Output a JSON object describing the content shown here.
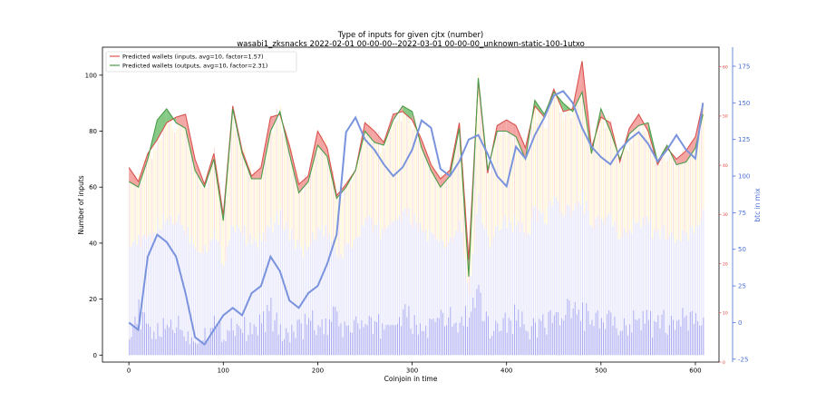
{
  "chart_data": {
    "type": "line",
    "title": "Type of inputs for given cjtx (number)",
    "subtitle": "wasabi1_zksnacks 2022-02-01 00-00-00--2022-03-01 00-00-00_unknown-static-100-1utxo",
    "xlabel": "Coinjoin in time",
    "ylabel": "Number of inputs",
    "y2label": "btc in mix",
    "xlim": [
      -28,
      625
    ],
    "ylim": [
      -2.5,
      110
    ],
    "y3lim": [
      0,
      64
    ],
    "y2lim": [
      -27,
      188
    ],
    "xticks": [
      0,
      100,
      200,
      300,
      400,
      500,
      600
    ],
    "yticks": [
      0,
      20,
      40,
      60,
      80,
      100
    ],
    "y3ticks": [
      0,
      10,
      20,
      30,
      40,
      50,
      60
    ],
    "y2ticks": [
      -25,
      0,
      25,
      50,
      75,
      100,
      125,
      150,
      175
    ],
    "grid": false,
    "legend_position": "top-left",
    "colors": {
      "inputs_line": "#d9534f",
      "outputs_line": "#4a9c4a",
      "fill_inputs_higher": "#f08a8a",
      "fill_outputs_higher": "#5fb85f",
      "btc_line": "#7a93dd",
      "bars_base": "#a9a9f2",
      "bars_mid": "#e3e3fb",
      "bars_top": "#fff3cc",
      "bars_pink": "#fbdcdc",
      "right_axis_red": "#e0413d",
      "right_axis_blue": "#4a6fd6"
    },
    "series": [
      {
        "name": "Predicted wallets (inputs, avg=10, factor=1.57)",
        "x": [
          0,
          10,
          20,
          30,
          40,
          50,
          60,
          70,
          80,
          90,
          100,
          110,
          120,
          130,
          140,
          150,
          160,
          170,
          180,
          190,
          200,
          210,
          220,
          230,
          240,
          250,
          260,
          270,
          280,
          290,
          300,
          310,
          320,
          330,
          340,
          350,
          360,
          370,
          380,
          390,
          400,
          410,
          420,
          430,
          440,
          450,
          460,
          470,
          480,
          490,
          500,
          510,
          520,
          530,
          540,
          550,
          560,
          570,
          580,
          590,
          600,
          608
        ],
        "values": [
          67,
          62,
          72,
          77,
          83,
          85,
          86,
          70,
          61,
          72,
          50,
          89,
          73,
          64,
          67,
          85,
          86,
          75,
          61,
          64,
          80,
          74,
          57,
          61,
          66,
          83,
          80,
          76,
          86,
          87,
          84,
          77,
          68,
          63,
          66,
          83,
          34,
          98,
          65,
          82,
          84,
          82,
          74,
          89,
          85,
          95,
          87,
          88,
          105,
          74,
          85,
          83,
          69,
          81,
          86,
          80,
          68,
          74,
          70,
          73,
          78,
          90
        ]
      },
      {
        "name": "Predicted wallets (outputs, avg=10, factor=2.31)",
        "x": [
          0,
          10,
          20,
          30,
          40,
          50,
          60,
          70,
          80,
          90,
          100,
          110,
          120,
          130,
          140,
          150,
          160,
          170,
          180,
          190,
          200,
          210,
          220,
          230,
          240,
          250,
          260,
          270,
          280,
          290,
          300,
          310,
          320,
          330,
          340,
          350,
          360,
          370,
          380,
          390,
          400,
          410,
          420,
          430,
          440,
          450,
          460,
          470,
          480,
          490,
          500,
          510,
          520,
          530,
          540,
          550,
          560,
          570,
          580,
          590,
          600,
          608
        ],
        "values": [
          62,
          60,
          70,
          84,
          88,
          83,
          81,
          66,
          60,
          70,
          48,
          88,
          72,
          63,
          63,
          80,
          87,
          72,
          58,
          62,
          75,
          71,
          56,
          60,
          66,
          80,
          76,
          75,
          84,
          89,
          87,
          74,
          66,
          60,
          64,
          81,
          28,
          99,
          66,
          80,
          80,
          78,
          70,
          91,
          86,
          94,
          90,
          87,
          94,
          72,
          88,
          80,
          70,
          79,
          82,
          83,
          69,
          75,
          68,
          69,
          74,
          86
        ]
      },
      {
        "name": "btc in mix",
        "axis": "right",
        "x": [
          0,
          10,
          20,
          30,
          40,
          50,
          60,
          70,
          80,
          90,
          100,
          110,
          120,
          130,
          140,
          150,
          160,
          170,
          180,
          190,
          200,
          210,
          220,
          230,
          240,
          250,
          260,
          270,
          280,
          290,
          300,
          310,
          320,
          330,
          340,
          350,
          360,
          370,
          380,
          390,
          400,
          410,
          420,
          430,
          440,
          450,
          460,
          470,
          480,
          490,
          500,
          510,
          520,
          530,
          540,
          550,
          560,
          570,
          580,
          590,
          600,
          608
        ],
        "values": [
          0,
          -5,
          45,
          60,
          55,
          45,
          20,
          -10,
          -15,
          -5,
          5,
          10,
          5,
          20,
          25,
          45,
          35,
          15,
          10,
          20,
          25,
          40,
          60,
          130,
          140,
          125,
          118,
          108,
          100,
          106,
          118,
          138,
          133,
          105,
          100,
          110,
          125,
          128,
          115,
          100,
          93,
          120,
          112,
          128,
          140,
          155,
          158,
          150,
          133,
          120,
          113,
          108,
          118,
          125,
          130,
          122,
          110,
          118,
          128,
          118,
          112,
          150
        ]
      }
    ],
    "bars": {
      "note": "stacked per-coinjoin input-type bars (approximate band heights in input units)",
      "x": [
        0,
        10,
        20,
        30,
        40,
        50,
        60,
        70,
        80,
        90,
        100,
        110,
        120,
        130,
        140,
        150,
        160,
        170,
        180,
        190,
        200,
        210,
        220,
        230,
        240,
        250,
        260,
        270,
        280,
        290,
        300,
        310,
        320,
        330,
        340,
        350,
        360,
        370,
        380,
        390,
        400,
        410,
        420,
        430,
        440,
        450,
        460,
        470,
        480,
        490,
        500,
        510,
        520,
        530,
        540,
        550,
        560,
        570,
        580,
        590,
        600,
        608
      ],
      "base": [
        10,
        14,
        9,
        8,
        10,
        12,
        7,
        5,
        8,
        11,
        7,
        12,
        10,
        8,
        12,
        15,
        8,
        8,
        9,
        12,
        10,
        9,
        14,
        8,
        12,
        9,
        11,
        10,
        12,
        14,
        11,
        9,
        10,
        12,
        13,
        10,
        15,
        18,
        10,
        11,
        12,
        14,
        10,
        9,
        13,
        12,
        15,
        14,
        16,
        10,
        12,
        11,
        9,
        13,
        15,
        12,
        10,
        12,
        14,
        11,
        13,
        12
      ],
      "mid": [
        42,
        40,
        41,
        46,
        48,
        49,
        45,
        39,
        38,
        43,
        33,
        48,
        44,
        40,
        41,
        46,
        49,
        44,
        37,
        38,
        45,
        43,
        35,
        38,
        41,
        47,
        46,
        44,
        49,
        50,
        48,
        45,
        42,
        39,
        40,
        47,
        22,
        54,
        40,
        46,
        48,
        47,
        43,
        51,
        49,
        55,
        51,
        50,
        57,
        44,
        48,
        47,
        42,
        46,
        49,
        47,
        42,
        44,
        42,
        42,
        45,
        51
      ],
      "top": [
        68,
        64,
        72,
        80,
        86,
        85,
        85,
        70,
        62,
        74,
        52,
        90,
        75,
        66,
        68,
        85,
        88,
        76,
        62,
        65,
        80,
        75,
        58,
        62,
        68,
        83,
        80,
        77,
        87,
        89,
        86,
        78,
        69,
        64,
        67,
        84,
        36,
        99,
        67,
        83,
        84,
        82,
        74,
        90,
        86,
        96,
        89,
        88,
        106,
        75,
        87,
        83,
        71,
        81,
        86,
        82,
        70,
        75,
        71,
        73,
        78,
        91
      ]
    },
    "legend": [
      "Predicted wallets (inputs, avg=10, factor=1.57)",
      "Predicted wallets (outputs, avg=10, factor=2.31)"
    ]
  }
}
